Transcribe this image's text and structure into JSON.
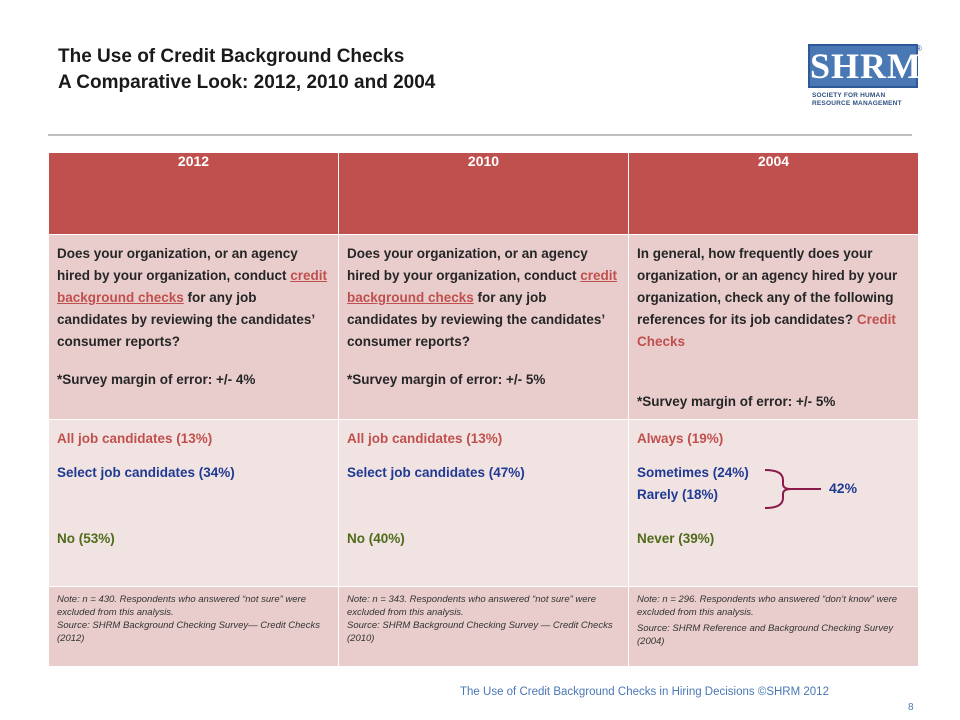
{
  "title": {
    "line1": "The Use of Credit Background Checks",
    "line2": "A Comparative Look: 2012, 2010 and 2004"
  },
  "logo": {
    "text": "SHRM",
    "reg": "®",
    "sub1": "SOCIETY FOR HUMAN",
    "sub2": "RESOURCE MANAGEMENT"
  },
  "table": {
    "headers": [
      "2012",
      "2010",
      "2004"
    ],
    "questions": [
      {
        "pre": "Does your organization, or an agency hired by your organization, conduct ",
        "link": "credit background checks",
        "post": " for any job candidates by reviewing the candidates’ consumer reports?",
        "margin": "*Survey margin of error: +/- 4%"
      },
      {
        "pre": "Does your organization, or an agency hired by your organization, conduct ",
        "link": "credit background checks",
        "post": " for any job candidates by reviewing the candidates’ consumer reports?",
        "margin": "*Survey margin of error: +/- 5%"
      },
      {
        "pre": "In general, how frequently does your organization, or an agency hired by your organization, check any of the following references for its job candidates? ",
        "highlight": "Credit Checks",
        "margin": "*Survey margin of error: +/- 5%"
      }
    ],
    "answers": [
      [
        "All job candidates (13%)",
        "Select job candidates (34%)",
        "No (53%)"
      ],
      [
        "All job candidates (13%)",
        "Select job candidates (47%)",
        "No (40%)"
      ],
      [
        "Always (19%)",
        "Sometimes (24%)",
        "Rarely (18%)",
        "Never (39%)"
      ]
    ],
    "combined": "42%",
    "notes": [
      {
        "line1": "Note: n = 430. Respondents who answered “not sure” were excluded from this analysis.",
        "line2": "Source: SHRM Background Checking Survey— Credit Checks (2012)"
      },
      {
        "line1": "Note: n = 343. Respondents who answered “not sure” were excluded from this analysis.",
        "line2": "Source: SHRM Background Checking Survey — Credit Checks (2010)"
      },
      {
        "line1": "Note: n = 296. Respondents who answered “don’t know” were excluded from this analysis.",
        "line2": "Source:  SHRM Reference  and Background Checking Survey (2004)"
      }
    ]
  },
  "footer": {
    "text": "The Use of Credit Background Checks in Hiring Decisions ©SHRM 2012",
    "page": "8"
  }
}
